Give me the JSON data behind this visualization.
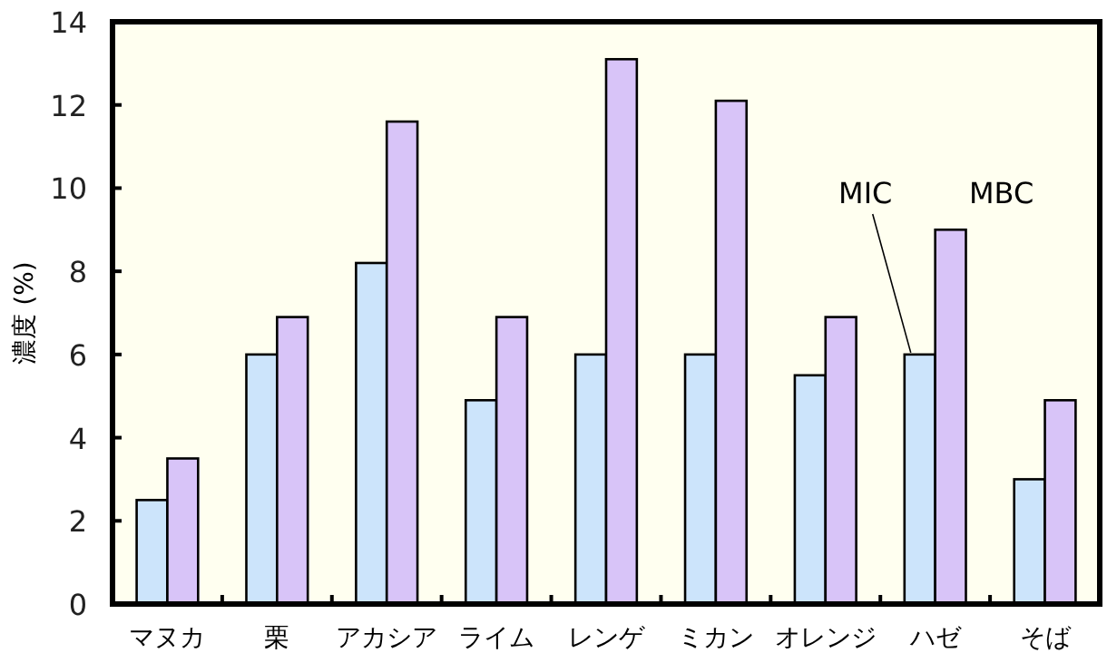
{
  "chart_data": {
    "type": "bar",
    "ylabel": "濃度 (%)",
    "categories": [
      "マヌカ",
      "栗",
      "アカシア",
      "ライム",
      "レンゲ",
      "ミカン",
      "オレンジ",
      "ハゼ",
      "そば"
    ],
    "series": [
      {
        "name": "MIC",
        "color": "#cce4fb",
        "values": [
          2.5,
          6,
          8.2,
          4.9,
          6,
          6,
          5.5,
          6,
          3
        ]
      },
      {
        "name": "MBC",
        "color": "#d8c4f8",
        "values": [
          3.5,
          6.9,
          11.6,
          6.9,
          13.1,
          12.1,
          6.9,
          9,
          4.9
        ]
      }
    ],
    "ylim": [
      0,
      14
    ],
    "yticks": [
      0,
      2,
      4,
      6,
      8,
      10,
      12,
      14
    ],
    "grid": false,
    "legend": false
  }
}
